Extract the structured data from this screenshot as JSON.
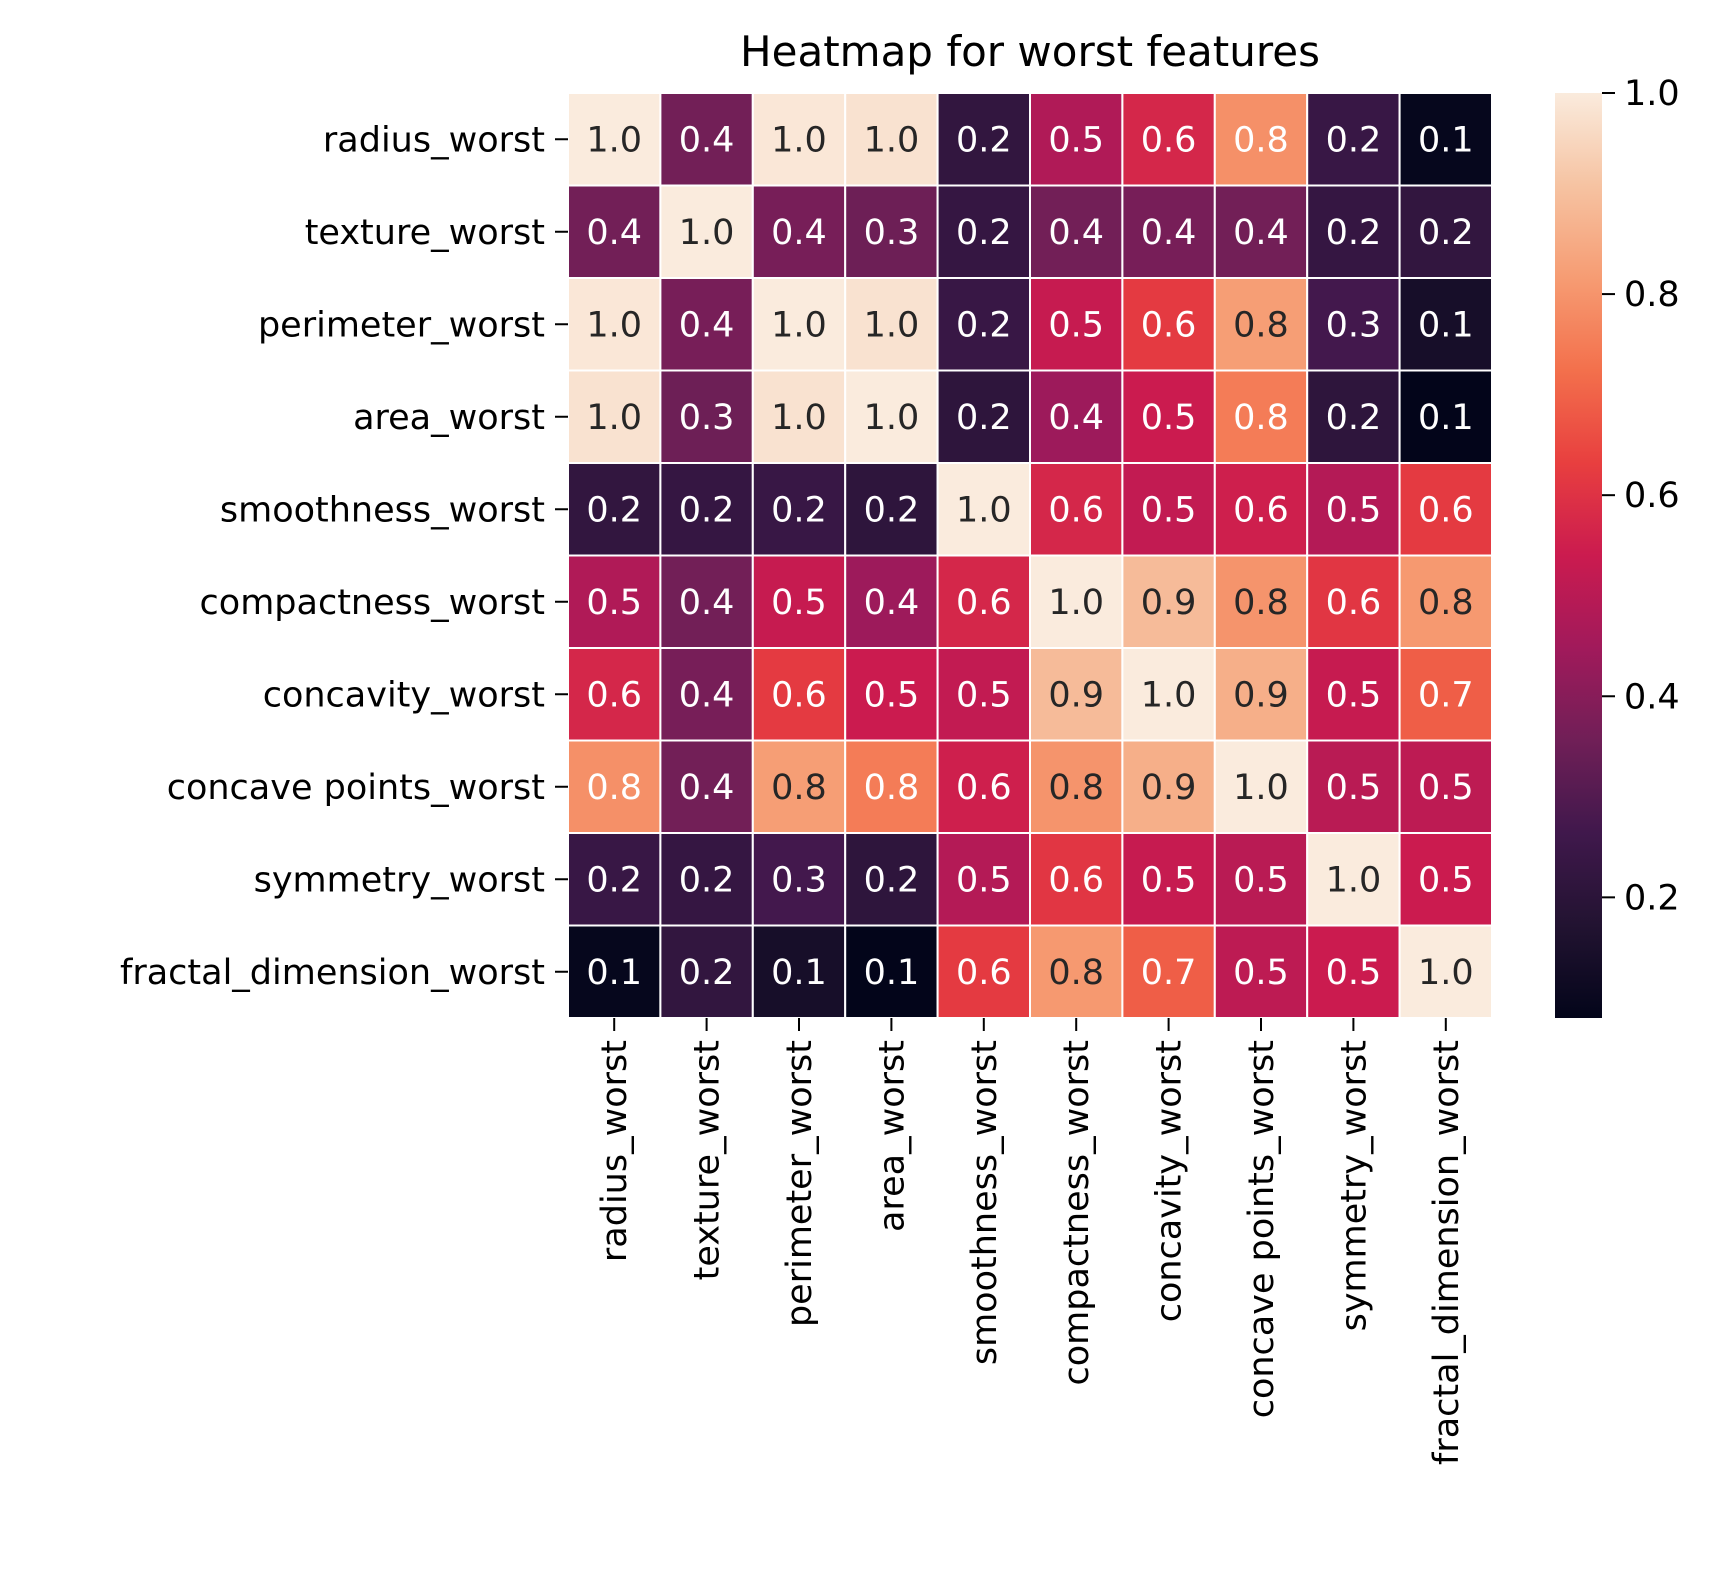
{
  "chart_data": {
    "type": "heatmap",
    "title": "Heatmap for worst features",
    "rows": [
      "radius_worst",
      "texture_worst",
      "perimeter_worst",
      "area_worst",
      "smoothness_worst",
      "compactness_worst",
      "concavity_worst",
      "concave points_worst",
      "symmetry_worst",
      "fractal_dimension_worst"
    ],
    "columns": [
      "radius_worst",
      "texture_worst",
      "perimeter_worst",
      "area_worst",
      "smoothness_worst",
      "compactness_worst",
      "concavity_worst",
      "concave points_worst",
      "symmetry_worst",
      "fractal_dimension_worst"
    ],
    "values": [
      [
        1.0,
        0.36,
        0.99,
        0.98,
        0.22,
        0.48,
        0.57,
        0.79,
        0.24,
        0.09
      ],
      [
        0.36,
        1.0,
        0.37,
        0.35,
        0.23,
        0.36,
        0.37,
        0.36,
        0.23,
        0.22
      ],
      [
        0.99,
        0.37,
        1.0,
        0.98,
        0.24,
        0.53,
        0.62,
        0.82,
        0.27,
        0.14
      ],
      [
        0.98,
        0.35,
        0.98,
        1.0,
        0.21,
        0.44,
        0.54,
        0.75,
        0.21,
        0.08
      ],
      [
        0.22,
        0.23,
        0.24,
        0.21,
        1.0,
        0.57,
        0.52,
        0.55,
        0.49,
        0.62
      ],
      [
        0.48,
        0.36,
        0.53,
        0.44,
        0.57,
        1.0,
        0.89,
        0.8,
        0.61,
        0.81
      ],
      [
        0.57,
        0.37,
        0.62,
        0.54,
        0.52,
        0.89,
        1.0,
        0.86,
        0.53,
        0.69
      ],
      [
        0.79,
        0.36,
        0.82,
        0.75,
        0.55,
        0.8,
        0.86,
        1.0,
        0.5,
        0.51
      ],
      [
        0.24,
        0.23,
        0.27,
        0.21,
        0.49,
        0.61,
        0.53,
        0.5,
        1.0,
        0.54
      ],
      [
        0.09,
        0.22,
        0.14,
        0.08,
        0.62,
        0.81,
        0.69,
        0.51,
        0.54,
        1.0
      ]
    ],
    "annotation_format": "one decimal",
    "colormap": "rocket",
    "colorbar": {
      "min": 0.08,
      "max": 1.0,
      "ticks": [
        0.2,
        0.4,
        0.6,
        0.8,
        1.0
      ],
      "tick_labels": [
        "0.2",
        "0.4",
        "0.6",
        "0.8",
        "1.0"
      ],
      "placement": "right"
    },
    "grid_lines_color": "#ffffff",
    "xtick_rotation": "vertical"
  }
}
